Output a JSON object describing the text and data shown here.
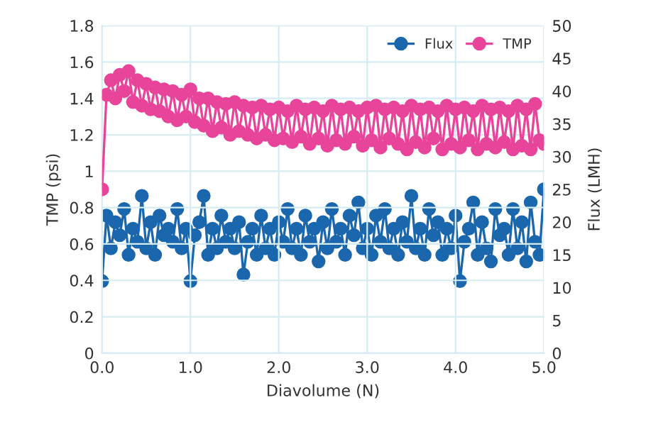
{
  "chart_data": {
    "type": "line",
    "xlabel": "Diavolume (N)",
    "ylabel": "TMP (psi)",
    "y2label": "Flux (LMH)",
    "x": [
      0.0,
      0.05,
      0.1,
      0.15,
      0.2,
      0.25,
      0.3,
      0.35,
      0.4,
      0.45,
      0.5,
      0.55,
      0.6,
      0.65,
      0.7,
      0.75,
      0.8,
      0.85,
      0.9,
      0.95,
      1.0,
      1.05,
      1.1,
      1.15,
      1.2,
      1.25,
      1.3,
      1.35,
      1.4,
      1.45,
      1.5,
      1.55,
      1.6,
      1.65,
      1.7,
      1.75,
      1.8,
      1.85,
      1.9,
      1.95,
      2.0,
      2.05,
      2.1,
      2.15,
      2.2,
      2.25,
      2.3,
      2.35,
      2.4,
      2.45,
      2.5,
      2.55,
      2.6,
      2.65,
      2.7,
      2.75,
      2.8,
      2.85,
      2.9,
      2.95,
      3.0,
      3.05,
      3.1,
      3.15,
      3.2,
      3.25,
      3.3,
      3.35,
      3.4,
      3.45,
      3.5,
      3.55,
      3.6,
      3.65,
      3.7,
      3.75,
      3.8,
      3.85,
      3.9,
      3.95,
      4.0,
      4.05,
      4.1,
      4.15,
      4.2,
      4.25,
      4.3,
      4.35,
      4.4,
      4.45,
      4.5,
      4.55,
      4.6,
      4.65,
      4.7,
      4.75,
      4.8,
      4.85,
      4.9,
      4.95,
      5.0
    ],
    "series": [
      {
        "name": "Flux",
        "color": "#1a67ad",
        "axis": "y2",
        "values": [
          11,
          21,
          16,
          20,
          18,
          22,
          15,
          19,
          17,
          24,
          16,
          20,
          15,
          21,
          18,
          19,
          17,
          22,
          16,
          19,
          11,
          18,
          20,
          24,
          15,
          19,
          16,
          21,
          17,
          19,
          16,
          20,
          12,
          17,
          19,
          15,
          21,
          16,
          19,
          15,
          20,
          17,
          22,
          16,
          19,
          15,
          21,
          17,
          19,
          14,
          20,
          16,
          22,
          17,
          19,
          15,
          21,
          18,
          23,
          16,
          19,
          15,
          21,
          17,
          22,
          16,
          19,
          15,
          20,
          17,
          24,
          16,
          19,
          15,
          22,
          18,
          20,
          15,
          19,
          16,
          21,
          11,
          17,
          19,
          23,
          15,
          20,
          16,
          14,
          22,
          18,
          19,
          15,
          22,
          16,
          20,
          14,
          23,
          17,
          15,
          25
        ]
      },
      {
        "name": "TMP",
        "color": "#e8449a",
        "values": [
          0.9,
          1.42,
          1.5,
          1.4,
          1.53,
          1.44,
          1.55,
          1.38,
          1.5,
          1.36,
          1.48,
          1.34,
          1.46,
          1.33,
          1.45,
          1.3,
          1.44,
          1.28,
          1.42,
          1.3,
          1.45,
          1.27,
          1.4,
          1.25,
          1.4,
          1.22,
          1.38,
          1.24,
          1.37,
          1.2,
          1.38,
          1.22,
          1.36,
          1.2,
          1.35,
          1.18,
          1.36,
          1.2,
          1.34,
          1.17,
          1.35,
          1.18,
          1.33,
          1.16,
          1.36,
          1.19,
          1.34,
          1.15,
          1.35,
          1.18,
          1.33,
          1.14,
          1.36,
          1.17,
          1.34,
          1.15,
          1.35,
          1.19,
          1.33,
          1.14,
          1.35,
          1.17,
          1.36,
          1.13,
          1.34,
          1.18,
          1.35,
          1.15,
          1.33,
          1.12,
          1.36,
          1.16,
          1.34,
          1.13,
          1.35,
          1.18,
          1.33,
          1.12,
          1.36,
          1.15,
          1.34,
          1.13,
          1.35,
          1.17,
          1.33,
          1.12,
          1.36,
          1.15,
          1.34,
          1.13,
          1.35,
          1.16,
          1.33,
          1.12,
          1.36,
          1.14,
          1.34,
          1.12,
          1.37,
          1.17,
          1.15
        ]
      }
    ],
    "xlim": [
      0,
      5
    ],
    "xticks": [
      {
        "value": 0,
        "label": "0.0"
      },
      {
        "value": 1,
        "label": "1.0"
      },
      {
        "value": 2,
        "label": "2.0"
      },
      {
        "value": 3,
        "label": "3.0"
      },
      {
        "value": 4,
        "label": "4.0"
      },
      {
        "value": 5,
        "label": "5.0"
      }
    ],
    "ylim": [
      0,
      1.8
    ],
    "yticks": [
      0,
      0.2,
      0.4,
      0.6,
      0.8,
      1,
      1.2,
      1.4,
      1.6,
      1.8
    ],
    "y2lim": [
      0,
      50
    ],
    "y2ticks": [
      0,
      5,
      10,
      15,
      20,
      25,
      30,
      35,
      40,
      45,
      50
    ],
    "grid": true,
    "legend": "top right",
    "marker": "circle",
    "line_style": "solid"
  }
}
